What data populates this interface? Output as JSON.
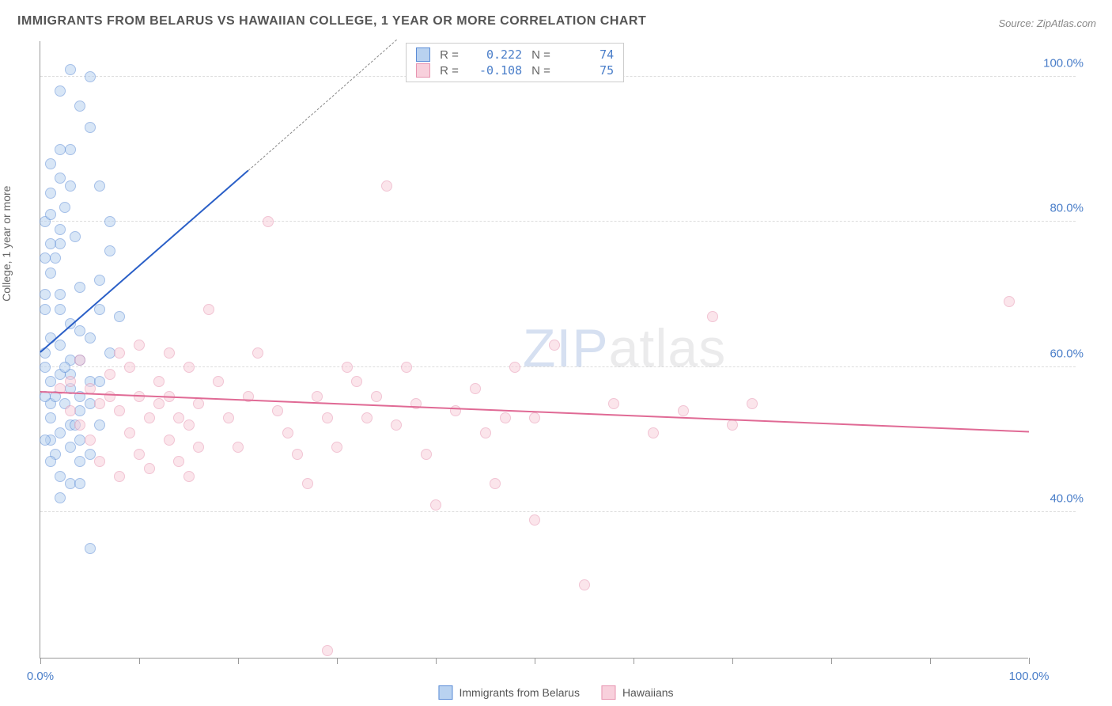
{
  "title": "IMMIGRANTS FROM BELARUS VS HAWAIIAN COLLEGE, 1 YEAR OR MORE CORRELATION CHART",
  "source": "Source: ZipAtlas.com",
  "y_axis_label": "College, 1 year or more",
  "watermark": {
    "zip": "ZIP",
    "atlas": "atlas"
  },
  "chart": {
    "type": "scatter",
    "xlim": [
      0,
      100
    ],
    "ylim": [
      20,
      105
    ],
    "x_ticks": [
      0,
      10,
      20,
      30,
      40,
      50,
      60,
      70,
      80,
      90,
      100
    ],
    "x_tick_labels": {
      "0": "0.0%",
      "100": "100.0%"
    },
    "y_gridlines": [
      40,
      60,
      80,
      100
    ],
    "y_tick_labels": {
      "40": "40.0%",
      "60": "60.0%",
      "80": "80.0%",
      "100": "100.0%"
    },
    "background_color": "#ffffff",
    "grid_color": "#dddddd",
    "axis_color": "#999999",
    "tick_label_color": "#4a7ec9",
    "marker_radius": 7,
    "marker_opacity": 0.55,
    "series": [
      {
        "name": "Immigrants from Belarus",
        "color_stroke": "#5b8cd6",
        "color_fill": "#b9d2f0",
        "trend": {
          "x1": 0,
          "y1": 62,
          "x2": 21,
          "y2": 87,
          "color": "#2a5fc7",
          "width": 2
        },
        "trend_dashed": {
          "x1": 21,
          "y1": 87,
          "x2": 36,
          "y2": 105
        },
        "R": "0.222",
        "N": "74",
        "points": [
          [
            1,
            64
          ],
          [
            1,
            58
          ],
          [
            1,
            55
          ],
          [
            0.5,
            60
          ],
          [
            0.5,
            70
          ],
          [
            1,
            73
          ],
          [
            1.5,
            75
          ],
          [
            2,
            77
          ],
          [
            2,
            79
          ],
          [
            2.5,
            82
          ],
          [
            3,
            85
          ],
          [
            3.5,
            78
          ],
          [
            4,
            71
          ],
          [
            3,
            66
          ],
          [
            2,
            63
          ],
          [
            2,
            59
          ],
          [
            1.5,
            56
          ],
          [
            1,
            53
          ],
          [
            1,
            50
          ],
          [
            1.5,
            48
          ],
          [
            2,
            45
          ],
          [
            3,
            52
          ],
          [
            3,
            57
          ],
          [
            4,
            61
          ],
          [
            4,
            54
          ],
          [
            5,
            58
          ],
          [
            5,
            64
          ],
          [
            6,
            68
          ],
          [
            6,
            72
          ],
          [
            7,
            80
          ],
          [
            8,
            67
          ],
          [
            2,
            98
          ],
          [
            3,
            101
          ],
          [
            4,
            96
          ],
          [
            5,
            100
          ],
          [
            5,
            93
          ],
          [
            6,
            85
          ],
          [
            7,
            76
          ],
          [
            3,
            90
          ],
          [
            1,
            88
          ],
          [
            0.5,
            80
          ],
          [
            0.5,
            75
          ],
          [
            0.5,
            68
          ],
          [
            0.5,
            62
          ],
          [
            0.5,
            56
          ],
          [
            0.5,
            50
          ],
          [
            2,
            51
          ],
          [
            4,
            47
          ],
          [
            3,
            44
          ],
          [
            5,
            35
          ],
          [
            2,
            68
          ],
          [
            2,
            70
          ],
          [
            3,
            61
          ],
          [
            3,
            59
          ],
          [
            4,
            56
          ],
          [
            4,
            65
          ],
          [
            5,
            55
          ],
          [
            6,
            58
          ],
          [
            7,
            62
          ],
          [
            1,
            77
          ],
          [
            1,
            81
          ],
          [
            1,
            84
          ],
          [
            2,
            86
          ],
          [
            2,
            90
          ],
          [
            2.5,
            60
          ],
          [
            2.5,
            55
          ],
          [
            3,
            49
          ],
          [
            3.5,
            52
          ],
          [
            4,
            50
          ],
          [
            1,
            47
          ],
          [
            2,
            42
          ],
          [
            4,
            44
          ],
          [
            5,
            48
          ],
          [
            6,
            52
          ]
        ]
      },
      {
        "name": "Hawaiians",
        "color_stroke": "#e794b0",
        "color_fill": "#f8d0dc",
        "trend": {
          "x1": 0,
          "y1": 56.5,
          "x2": 100,
          "y2": 51,
          "color": "#e06a95",
          "width": 2
        },
        "R": "-0.108",
        "N": "75",
        "points": [
          [
            3,
            58
          ],
          [
            4,
            61
          ],
          [
            5,
            57
          ],
          [
            6,
            55
          ],
          [
            7,
            59
          ],
          [
            8,
            62
          ],
          [
            8,
            54
          ],
          [
            9,
            51
          ],
          [
            10,
            56
          ],
          [
            10,
            48
          ],
          [
            11,
            53
          ],
          [
            12,
            58
          ],
          [
            13,
            56
          ],
          [
            13,
            50
          ],
          [
            14,
            47
          ],
          [
            15,
            52
          ],
          [
            15,
            60
          ],
          [
            16,
            55
          ],
          [
            17,
            68
          ],
          [
            18,
            58
          ],
          [
            19,
            53
          ],
          [
            20,
            49
          ],
          [
            21,
            56
          ],
          [
            22,
            62
          ],
          [
            23,
            80
          ],
          [
            24,
            54
          ],
          [
            25,
            51
          ],
          [
            26,
            48
          ],
          [
            27,
            44
          ],
          [
            28,
            56
          ],
          [
            29,
            53
          ],
          [
            29,
            21
          ],
          [
            30,
            49
          ],
          [
            31,
            60
          ],
          [
            32,
            58
          ],
          [
            33,
            53
          ],
          [
            34,
            56
          ],
          [
            35,
            85
          ],
          [
            36,
            52
          ],
          [
            37,
            60
          ],
          [
            38,
            55
          ],
          [
            39,
            48
          ],
          [
            40,
            41
          ],
          [
            42,
            54
          ],
          [
            44,
            57
          ],
          [
            45,
            51
          ],
          [
            46,
            44
          ],
          [
            47,
            53
          ],
          [
            48,
            60
          ],
          [
            50,
            39
          ],
          [
            50,
            53
          ],
          [
            52,
            63
          ],
          [
            55,
            30
          ],
          [
            58,
            55
          ],
          [
            62,
            51
          ],
          [
            65,
            54
          ],
          [
            68,
            67
          ],
          [
            70,
            52
          ],
          [
            72,
            55
          ],
          [
            98,
            69
          ],
          [
            2,
            57
          ],
          [
            3,
            54
          ],
          [
            4,
            52
          ],
          [
            5,
            50
          ],
          [
            6,
            47
          ],
          [
            7,
            56
          ],
          [
            8,
            45
          ],
          [
            9,
            60
          ],
          [
            10,
            63
          ],
          [
            11,
            46
          ],
          [
            12,
            55
          ],
          [
            13,
            62
          ],
          [
            14,
            53
          ],
          [
            15,
            45
          ],
          [
            16,
            49
          ]
        ]
      }
    ]
  },
  "stats_box": {
    "rows": [
      {
        "swatch_fill": "#b9d2f0",
        "swatch_stroke": "#5b8cd6",
        "r_label": "R =",
        "r_val": "0.222",
        "n_label": "N =",
        "n_val": "74"
      },
      {
        "swatch_fill": "#f8d0dc",
        "swatch_stroke": "#e794b0",
        "r_label": "R =",
        "r_val": "-0.108",
        "n_label": "N =",
        "n_val": "75"
      }
    ]
  },
  "bottom_legend": [
    {
      "swatch_fill": "#b9d2f0",
      "swatch_stroke": "#5b8cd6",
      "label": "Immigrants from Belarus"
    },
    {
      "swatch_fill": "#f8d0dc",
      "swatch_stroke": "#e794b0",
      "label": "Hawaiians"
    }
  ]
}
